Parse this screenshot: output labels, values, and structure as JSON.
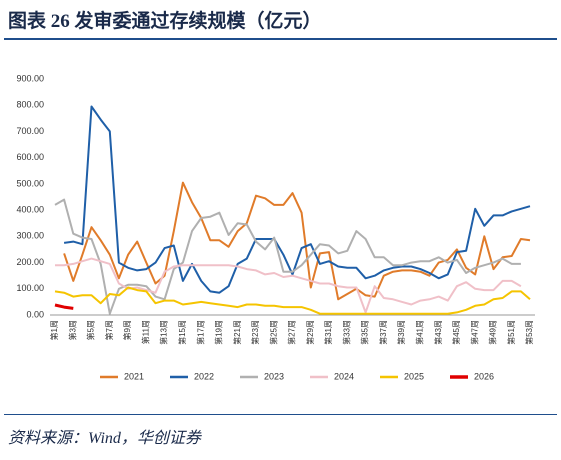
{
  "chart_data": {
    "type": "line",
    "title": "图表 26 发审委通过存续规模（亿元）",
    "source": "资料来源：Wind，华创证券",
    "categories": [
      "第1周",
      null,
      "第3周",
      null,
      "第5周",
      null,
      "第7周",
      null,
      "第9周",
      null,
      "第11周",
      null,
      "第13周",
      null,
      "第15周",
      null,
      "第17周",
      null,
      "第19周",
      null,
      "第21周",
      null,
      "第23周",
      null,
      "第25周",
      null,
      "第27周",
      null,
      "第29周",
      null,
      "第31周",
      null,
      "第33周",
      null,
      "第35周",
      null,
      "第37周",
      null,
      "第39周",
      null,
      "第41周",
      null,
      "第43周",
      null,
      "第45周",
      null,
      "第47周",
      null,
      "第49周",
      null,
      "第51周",
      null,
      "第53周"
    ],
    "ylim": [
      0,
      900
    ],
    "yticks": [
      {
        "value": 0,
        "label": "0.00"
      },
      {
        "value": 100,
        "label": "100.00"
      },
      {
        "value": 200,
        "label": "200.00"
      },
      {
        "value": 300,
        "label": "300.00"
      },
      {
        "value": 400,
        "label": "400.00"
      },
      {
        "value": 500,
        "label": "500.00"
      },
      {
        "value": 600,
        "label": "600.00"
      },
      {
        "value": 700,
        "label": "700.00"
      },
      {
        "value": 800,
        "label": "800.00"
      },
      {
        "value": 900,
        "label": "900.00"
      }
    ],
    "legend": "bottom",
    "series": [
      {
        "name": "2021",
        "color": "#e07b2a",
        "values": [
          null,
          235,
          130,
          230,
          335,
          285,
          230,
          140,
          230,
          280,
          200,
          120,
          150,
          320,
          505,
          430,
          370,
          285,
          285,
          260,
          320,
          350,
          455,
          445,
          420,
          420,
          465,
          390,
          105,
          235,
          240,
          60,
          80,
          100,
          75,
          70,
          150,
          165,
          170,
          170,
          165,
          150,
          200,
          210,
          250,
          180,
          155,
          300,
          175,
          220,
          225,
          290,
          285
        ]
      },
      {
        "name": "2022",
        "color": "#1f5fa8",
        "values": [
          null,
          275,
          280,
          270,
          795,
          745,
          700,
          200,
          180,
          170,
          175,
          200,
          255,
          265,
          130,
          195,
          130,
          90,
          85,
          110,
          195,
          215,
          290,
          290,
          290,
          230,
          155,
          255,
          270,
          195,
          205,
          185,
          180,
          180,
          140,
          150,
          170,
          180,
          185,
          185,
          175,
          160,
          140,
          155,
          240,
          245,
          405,
          340,
          380,
          380,
          395,
          405,
          415
        ]
      },
      {
        "name": "2023",
        "color": "#b0b0b0",
        "values": [
          420,
          440,
          310,
          295,
          290,
          195,
          5,
          100,
          115,
          115,
          110,
          70,
          60,
          175,
          200,
          320,
          370,
          375,
          390,
          305,
          350,
          345,
          280,
          250,
          295,
          165,
          165,
          190,
          230,
          270,
          265,
          235,
          245,
          320,
          290,
          220,
          220,
          190,
          190,
          200,
          205,
          205,
          220,
          200,
          210,
          160,
          180,
          190,
          200,
          215,
          195,
          195,
          null
        ]
      },
      {
        "name": "2024",
        "color": "#f0c0c8",
        "values": [
          190,
          190,
          195,
          205,
          215,
          205,
          195,
          120,
          100,
          105,
          95,
          85,
          165,
          185,
          190,
          190,
          190,
          190,
          190,
          190,
          185,
          175,
          170,
          155,
          160,
          145,
          150,
          140,
          130,
          120,
          120,
          110,
          105,
          105,
          10,
          110,
          65,
          60,
          50,
          40,
          55,
          60,
          70,
          55,
          110,
          125,
          100,
          95,
          95,
          130,
          130,
          110,
          null
        ]
      },
      {
        "name": "2025",
        "color": "#f5c400",
        "values": [
          90,
          85,
          70,
          75,
          75,
          45,
          80,
          75,
          105,
          95,
          90,
          45,
          55,
          55,
          40,
          45,
          50,
          45,
          40,
          35,
          30,
          40,
          40,
          35,
          35,
          30,
          30,
          30,
          20,
          5,
          5,
          5,
          5,
          5,
          5,
          5,
          5,
          5,
          5,
          5,
          5,
          5,
          5,
          5,
          10,
          20,
          35,
          40,
          60,
          65,
          90,
          90,
          60
        ]
      },
      {
        "name": "2026",
        "color": "#e00000",
        "values": [
          38,
          30,
          25,
          null,
          null,
          null,
          null,
          null,
          null,
          null,
          null,
          null,
          null,
          null,
          null,
          null,
          null,
          null,
          null,
          null,
          null,
          null,
          null,
          null,
          null,
          null,
          null,
          null,
          null,
          null,
          null,
          null,
          null,
          null,
          null,
          null,
          null,
          null,
          null,
          null,
          null,
          null,
          null,
          null,
          null,
          null,
          null,
          null,
          null,
          null,
          null,
          null,
          null
        ]
      }
    ]
  }
}
